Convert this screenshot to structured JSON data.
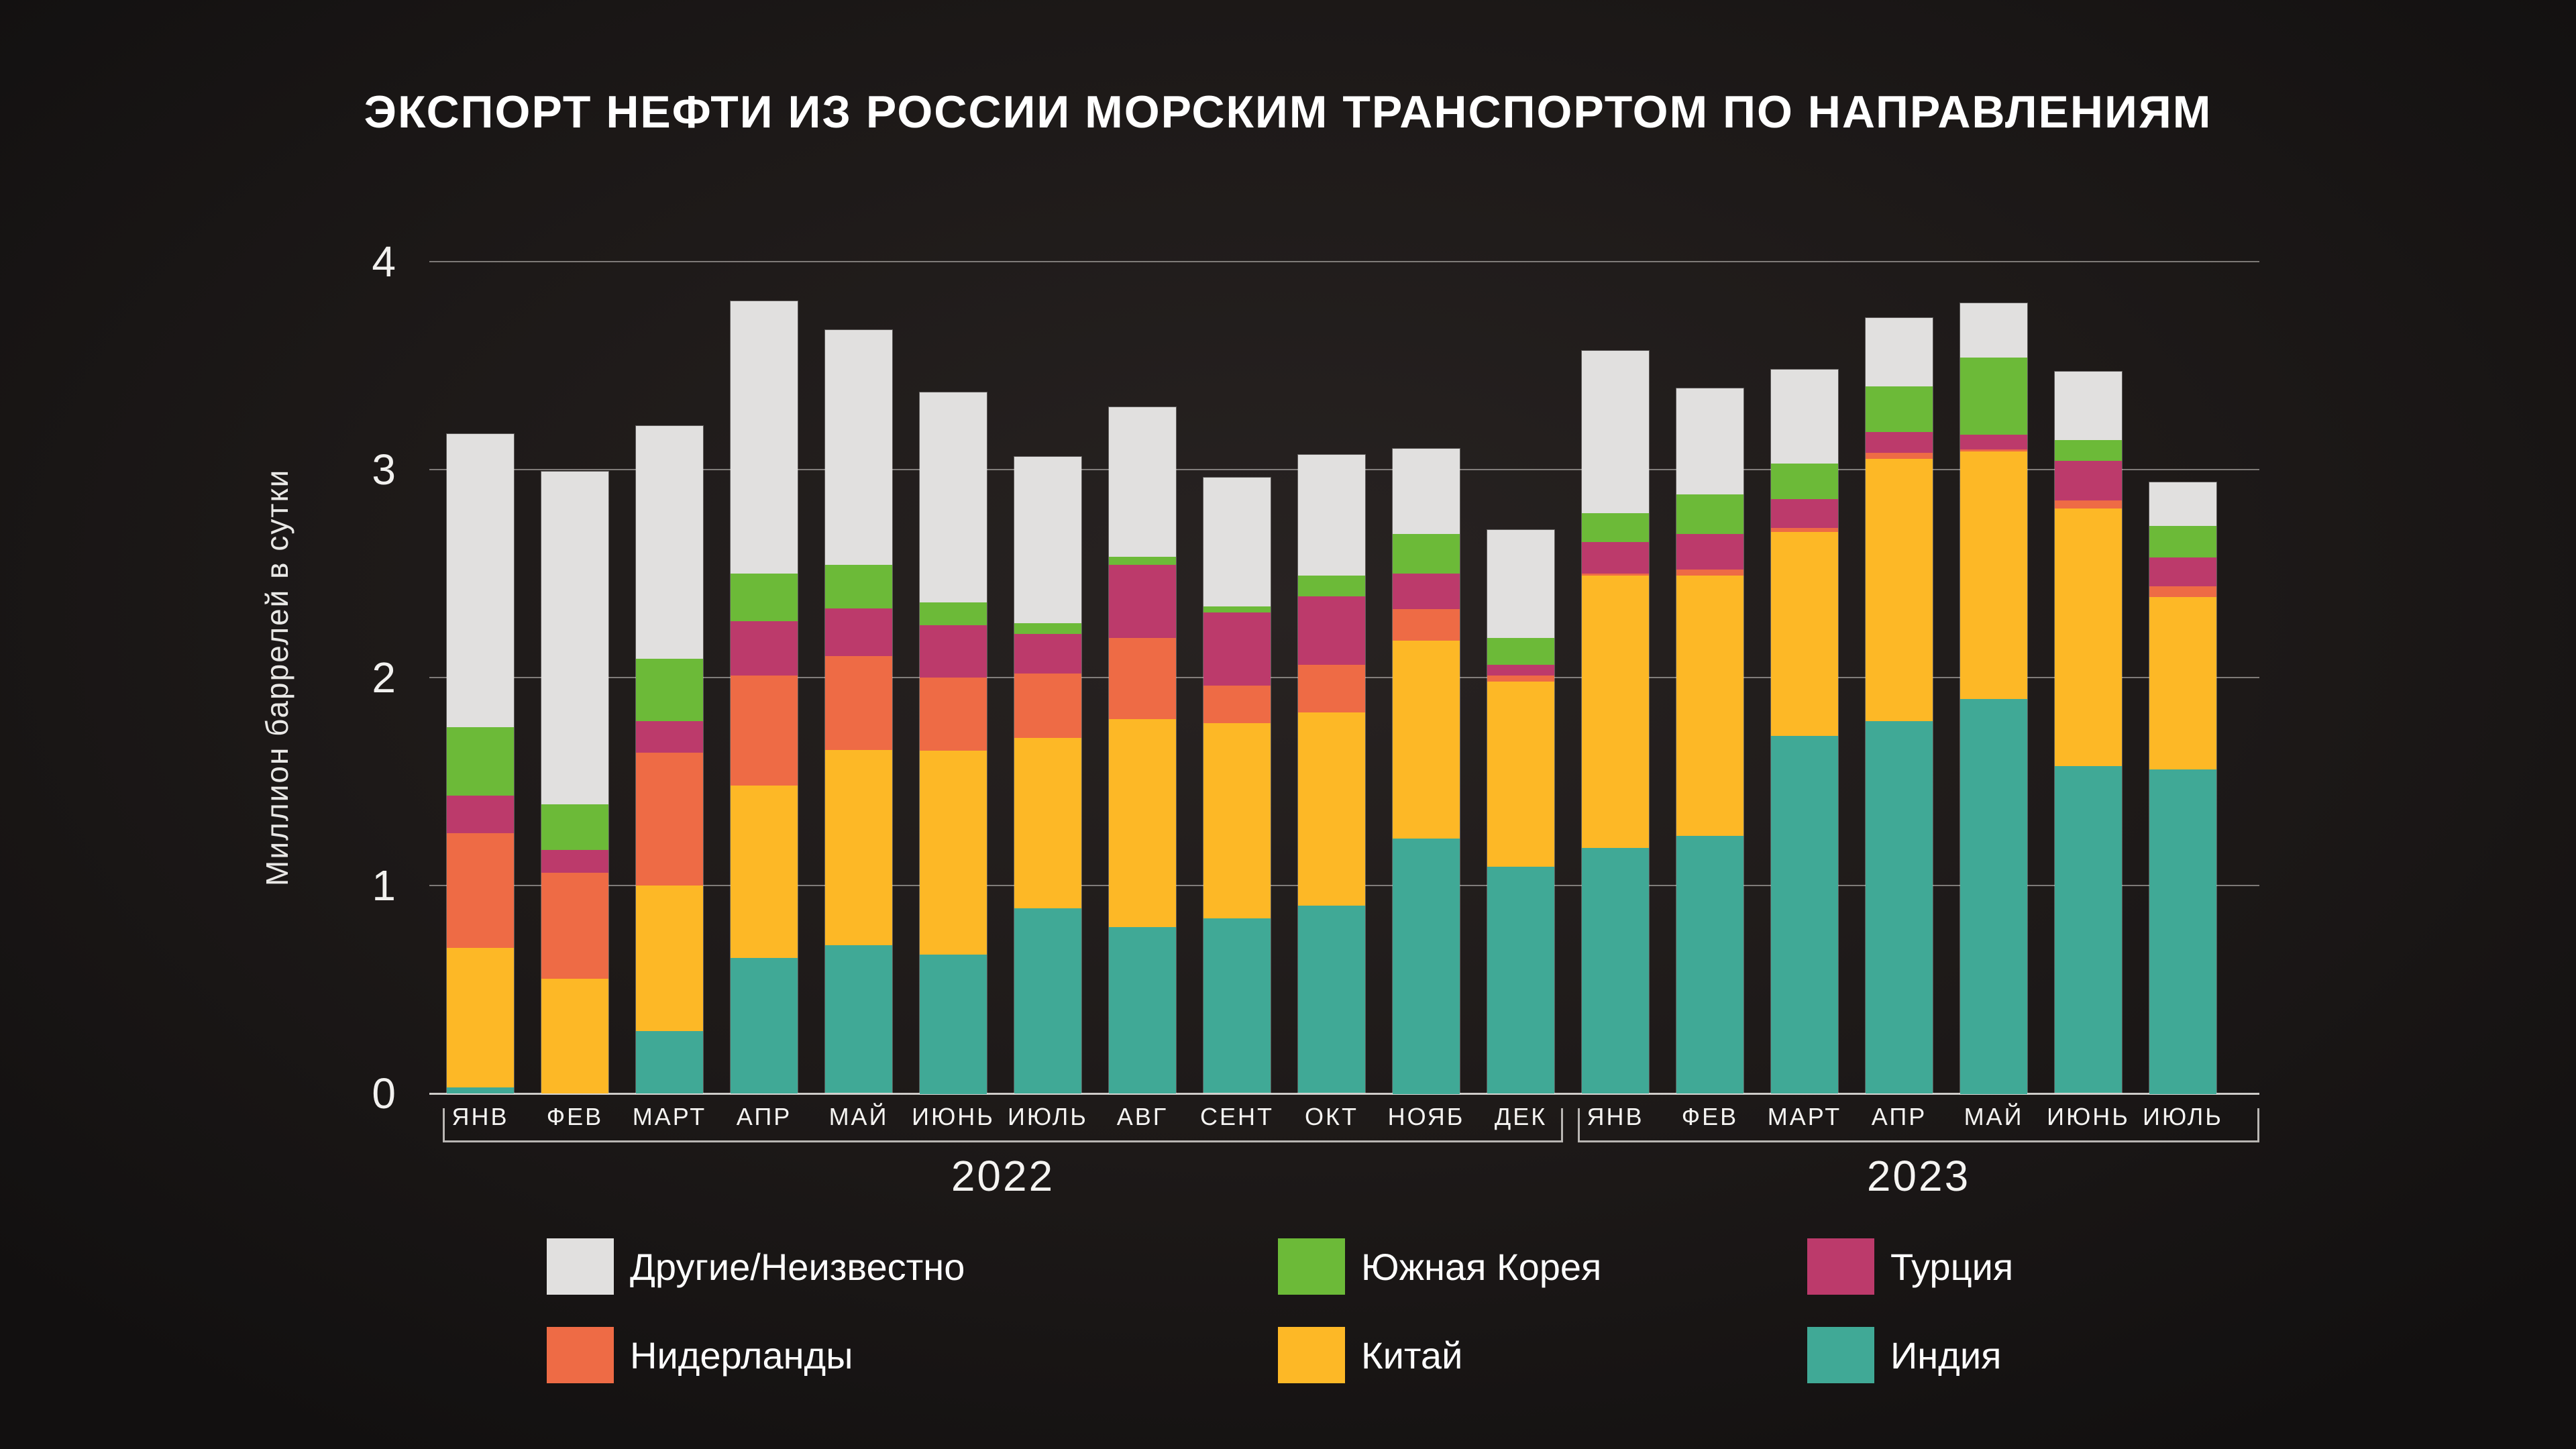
{
  "chart_data": {
    "type": "bar",
    "stacked": true,
    "title": "ЭКСПОРТ НЕФТИ ИЗ РОССИИ МОРСКИМ ТРАНСПОРТОМ ПО НАПРАВЛЕНИЯМ",
    "ylabel": "Миллион баррелей в сутки",
    "ylim": [
      0,
      4
    ],
    "yticks": [
      "0",
      "1",
      "2",
      "3",
      "4"
    ],
    "grid": "horizontal",
    "groups": [
      {
        "year": "2022",
        "months": [
          "ЯНВ",
          "ФЕВ",
          "МАРТ",
          "АПР",
          "МАЙ",
          "ИЮНЬ",
          "ИЮЛЬ",
          "АВГ",
          "СЕНТ",
          "ОКТ",
          "НОЯБ",
          "ДЕК"
        ]
      },
      {
        "year": "2023",
        "months": [
          "ЯНВ",
          "ФЕВ",
          "МАРТ",
          "АПР",
          "МАЙ",
          "ИЮНЬ",
          "ИЮЛЬ"
        ]
      }
    ],
    "series": [
      {
        "key": "india",
        "name": "Индия",
        "color": "#40a996",
        "values": [
          0.03,
          0.0,
          0.3,
          0.65,
          0.71,
          0.67,
          0.89,
          0.8,
          0.84,
          0.9,
          1.23,
          1.09,
          1.18,
          1.24,
          1.72,
          1.79,
          1.9,
          1.57,
          1.56
        ]
      },
      {
        "key": "china",
        "name": "Китай",
        "color": "#fdb826",
        "values": [
          0.67,
          0.55,
          0.7,
          0.83,
          0.94,
          0.98,
          0.82,
          1.0,
          0.94,
          0.93,
          0.95,
          0.89,
          1.31,
          1.25,
          0.98,
          1.26,
          1.19,
          1.24,
          0.83
        ]
      },
      {
        "key": "netherlands",
        "name": "Нидерланды",
        "color": "#ee6b45",
        "values": [
          0.55,
          0.51,
          0.64,
          0.53,
          0.45,
          0.35,
          0.31,
          0.39,
          0.18,
          0.23,
          0.15,
          0.03,
          0.01,
          0.03,
          0.02,
          0.03,
          0.01,
          0.04,
          0.05
        ]
      },
      {
        "key": "turkey",
        "name": "Турция",
        "color": "#bc3a6b",
        "values": [
          0.18,
          0.11,
          0.15,
          0.26,
          0.23,
          0.25,
          0.19,
          0.35,
          0.35,
          0.33,
          0.17,
          0.05,
          0.15,
          0.17,
          0.14,
          0.1,
          0.07,
          0.19,
          0.14
        ]
      },
      {
        "key": "south-korea",
        "name": "Южная Корея",
        "color": "#6cba38",
        "values": [
          0.33,
          0.22,
          0.3,
          0.23,
          0.21,
          0.11,
          0.05,
          0.04,
          0.03,
          0.1,
          0.19,
          0.13,
          0.14,
          0.19,
          0.17,
          0.22,
          0.37,
          0.1,
          0.15
        ]
      },
      {
        "key": "others",
        "name": "Другие/Неизвестно",
        "color": "#e1e0df",
        "values": [
          1.41,
          1.6,
          1.12,
          1.31,
          1.13,
          1.01,
          0.8,
          0.72,
          0.62,
          0.58,
          0.41,
          0.52,
          0.78,
          0.51,
          0.45,
          0.33,
          0.26,
          0.33,
          0.21
        ]
      }
    ],
    "totals": [
      3.17,
      2.99,
      3.21,
      3.81,
      3.67,
      3.37,
      3.06,
      3.3,
      2.96,
      3.07,
      3.1,
      2.71,
      3.57,
      3.39,
      3.48,
      3.73,
      3.8,
      3.47,
      2.94
    ],
    "legend_order": [
      "others",
      "south-korea",
      "turkey",
      "netherlands",
      "china",
      "india"
    ],
    "colors": {
      "background_center": "#282322",
      "background_edge": "#121010",
      "gridline": "#cdcac6",
      "text": "#f5f4f2"
    }
  }
}
